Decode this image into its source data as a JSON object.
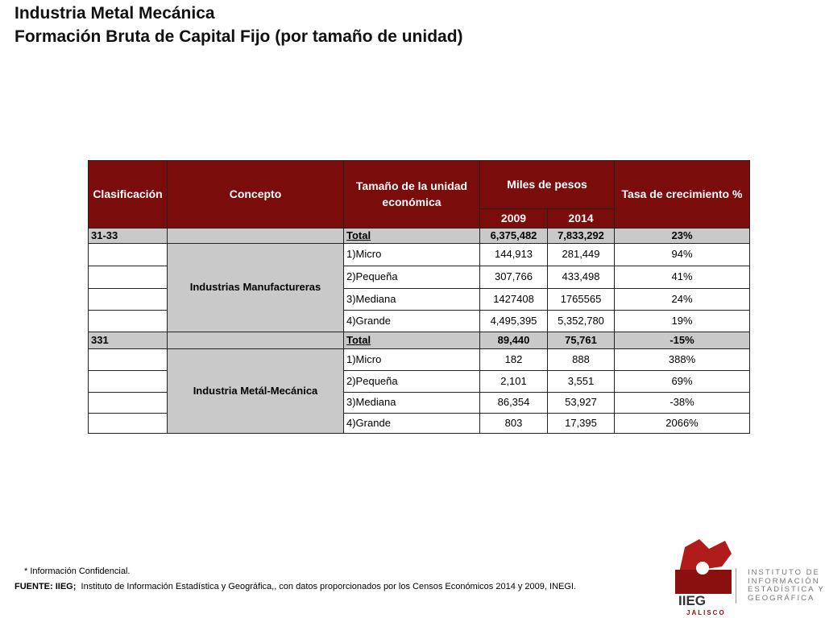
{
  "header": {
    "title": "Industria Metal Mecánica",
    "subtitle": "Formación Bruta de Capital Fijo (por tamaño de unidad)"
  },
  "table": {
    "columns": {
      "clasificacion": "Clasificación",
      "concepto": "Concepto",
      "tamano": "Tamaño de la unidad económica",
      "miles": "Miles de pesos",
      "tasa": "Tasa de crecimiento %",
      "years": [
        "2009",
        "2014"
      ]
    },
    "groups": [
      {
        "clasificacion": "31-33",
        "concepto": "Industrias Manufactureras",
        "rows": [
          [
            "Total",
            "6,375,482",
            "7,833,292",
            "23%"
          ],
          [
            "1)Micro",
            "144,913",
            "281,449",
            "94%"
          ],
          [
            "2)Pequeña",
            "307,766",
            "433,498",
            "41%"
          ],
          [
            "3)Mediana",
            "1427408",
            "1765565",
            "24%"
          ],
          [
            "4)Grande",
            "4,495,395",
            "5,352,780",
            "19%"
          ]
        ]
      },
      {
        "clasificacion": "331",
        "concepto": "Industria Metál-Mecánica",
        "rows": [
          [
            "Total",
            "89,440",
            "75,761",
            "-15%"
          ],
          [
            "1)Micro",
            "182",
            "888",
            "388%"
          ],
          [
            "2)Pequeña",
            "2,101",
            "3,551",
            "69%"
          ],
          [
            "3)Mediana",
            "86,354",
            "53,927",
            "-38%"
          ],
          [
            "4)Grande",
            "803",
            "17,395",
            "2066%"
          ]
        ]
      }
    ]
  },
  "footer": {
    "note": "*  Información Confidencial.",
    "source_label": "FUENTE: IIEG;",
    "source": "Instituto de Información Estadística y Geográfica,, con datos proporcionados por los Censos Económicos  2014 y 2009, INEGI."
  },
  "logo": {
    "acronym": "IIEG",
    "state": "JALISCO",
    "lines": [
      "INSTITUTO DE",
      "INFORMACIÓN",
      "ESTADÍSTICA Y",
      "GEOGRÁFICA"
    ]
  }
}
